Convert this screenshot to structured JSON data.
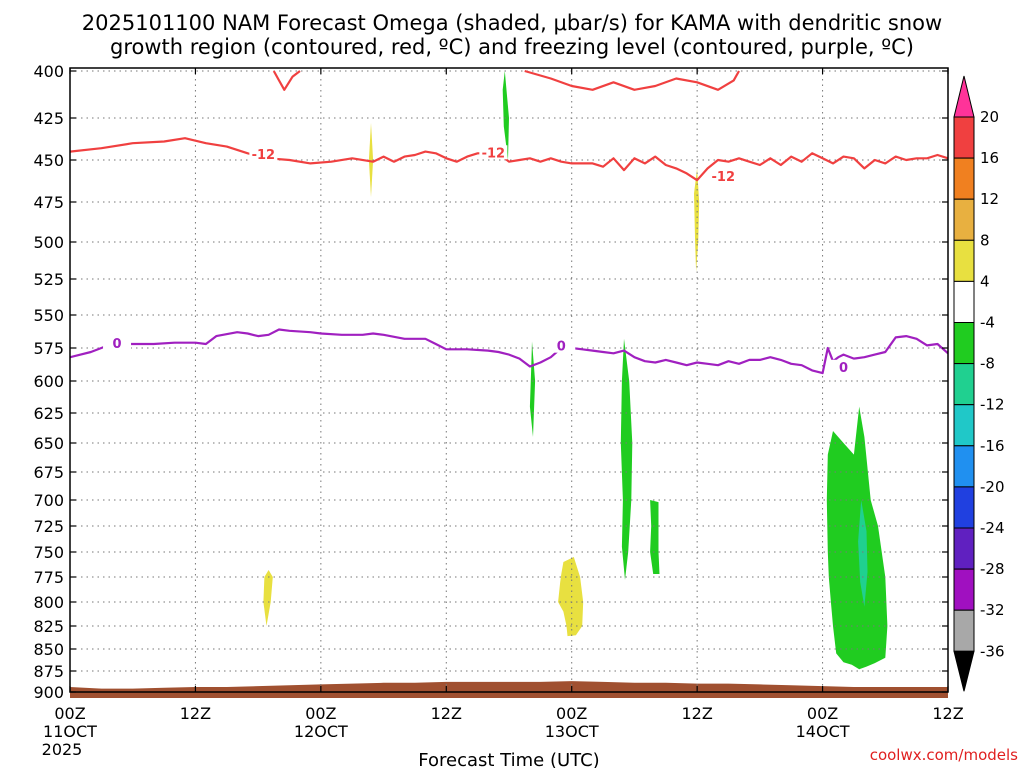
{
  "chart_data": {
    "type": "time-height contour",
    "title_line1": "2025101100 NAM Forecast Omega (shaded, μbar/s) for KAMA with dendritic snow",
    "title_line2": "growth region (contoured, red, ºC) and freezing level (contoured, purple, ºC)",
    "xlabel": "Forecast Time (UTC)",
    "credit": "coolwx.com/models",
    "x_unit": "hours since 2025101100",
    "xlim": [
      0,
      84
    ],
    "ylim": [
      900,
      400
    ],
    "y_ticks": [
      400,
      425,
      450,
      475,
      500,
      525,
      550,
      575,
      600,
      625,
      650,
      675,
      700,
      725,
      750,
      775,
      800,
      825,
      850,
      875,
      900
    ],
    "x_ticks": [
      {
        "x": 0,
        "label": "00Z",
        "sub1": "11OCT",
        "sub2": "2025"
      },
      {
        "x": 12,
        "label": "12Z",
        "sub1": "",
        "sub2": ""
      },
      {
        "x": 24,
        "label": "00Z",
        "sub1": "12OCT",
        "sub2": ""
      },
      {
        "x": 36,
        "label": "12Z",
        "sub1": "",
        "sub2": ""
      },
      {
        "x": 48,
        "label": "00Z",
        "sub1": "13OCT",
        "sub2": ""
      },
      {
        "x": 60,
        "label": "12Z",
        "sub1": "",
        "sub2": ""
      },
      {
        "x": 72,
        "label": "00Z",
        "sub1": "14OCT",
        "sub2": ""
      },
      {
        "x": 84,
        "label": "12Z",
        "sub1": "",
        "sub2": ""
      }
    ],
    "grid": true,
    "colorbar": {
      "labels": [
        "20",
        "16",
        "12",
        "8",
        "4",
        "-4",
        "-8",
        "-12",
        "-16",
        "-20",
        "-24",
        "-28",
        "-32",
        "-36"
      ],
      "colors": [
        "#ff3399",
        "#f04040",
        "#f08020",
        "#e8b040",
        "#e8e040",
        "#ffffff",
        "#20cc20",
        "#20d090",
        "#20c8c8",
        "#2090f0",
        "#2040e0",
        "#6020c0",
        "#a010c0",
        "#a8a8a8",
        "#000000"
      ]
    },
    "contours": [
      {
        "name": "-12",
        "color": "#f04040",
        "label_positions": [
          [
            18.5,
            447
          ],
          [
            40.5,
            446
          ],
          [
            62.5,
            460
          ]
        ],
        "points": [
          [
            0,
            445
          ],
          [
            3,
            443
          ],
          [
            6,
            440
          ],
          [
            9,
            439
          ],
          [
            11,
            437
          ],
          [
            13,
            440
          ],
          [
            15,
            442
          ],
          [
            17,
            446
          ],
          [
            19,
            449
          ],
          [
            21,
            450
          ],
          [
            23,
            452
          ],
          [
            25,
            451
          ],
          [
            27,
            449
          ],
          [
            29,
            451
          ],
          [
            30,
            448
          ],
          [
            31,
            451
          ],
          [
            32,
            448
          ],
          [
            33,
            447
          ],
          [
            34,
            445
          ],
          [
            35,
            446
          ],
          [
            36,
            449
          ],
          [
            37,
            451
          ],
          [
            38,
            448
          ],
          [
            39,
            446
          ],
          [
            41,
            446
          ],
          [
            42,
            451
          ],
          [
            43,
            450
          ],
          [
            44,
            449
          ],
          [
            45,
            451
          ],
          [
            46,
            449
          ],
          [
            47,
            451
          ],
          [
            48,
            452
          ],
          [
            50,
            452
          ],
          [
            51,
            454
          ],
          [
            52,
            449
          ],
          [
            53,
            456
          ],
          [
            54,
            449
          ],
          [
            55,
            452
          ],
          [
            56,
            448
          ],
          [
            57,
            453
          ],
          [
            58,
            455
          ],
          [
            59,
            458
          ],
          [
            60,
            462
          ],
          [
            61,
            455
          ],
          [
            62,
            450
          ],
          [
            63,
            451
          ],
          [
            64,
            449
          ],
          [
            65,
            451
          ],
          [
            66,
            453
          ],
          [
            67,
            449
          ],
          [
            68,
            453
          ],
          [
            69,
            448
          ],
          [
            70,
            451
          ],
          [
            71,
            446
          ],
          [
            72,
            449
          ],
          [
            73,
            452
          ],
          [
            74,
            448
          ],
          [
            75,
            449
          ],
          [
            76,
            455
          ],
          [
            77,
            450
          ],
          [
            78,
            452
          ],
          [
            79,
            448
          ],
          [
            80,
            450
          ],
          [
            81,
            449
          ],
          [
            82,
            449
          ],
          [
            83,
            447
          ],
          [
            84,
            449
          ]
        ]
      },
      {
        "name": "-12 top",
        "color": "#f04040",
        "label_positions": [],
        "points": [
          [
            19.5,
            400
          ],
          [
            20.0,
            405
          ],
          [
            20.5,
            410
          ],
          [
            21.3,
            403
          ],
          [
            22,
            400
          ]
        ]
      },
      {
        "name": "-12 top2",
        "color": "#f04040",
        "label_positions": [],
        "points": [
          [
            43.5,
            400
          ],
          [
            46,
            404
          ],
          [
            48,
            408
          ],
          [
            50,
            410
          ],
          [
            52,
            406
          ],
          [
            54,
            410
          ],
          [
            56,
            408
          ],
          [
            58,
            404
          ],
          [
            60,
            406
          ],
          [
            62,
            410
          ],
          [
            63.5,
            405
          ],
          [
            64,
            400
          ]
        ]
      },
      {
        "name": "0",
        "color": "#a020c0",
        "label_positions": [
          [
            4.5,
            572
          ],
          [
            47.0,
            574
          ],
          [
            74.0,
            590
          ]
        ],
        "points": [
          [
            0,
            582
          ],
          [
            2,
            578
          ],
          [
            4,
            572
          ],
          [
            6,
            572
          ],
          [
            8,
            572
          ],
          [
            10,
            571
          ],
          [
            12,
            571
          ],
          [
            13,
            572
          ],
          [
            14,
            566
          ],
          [
            16,
            563
          ],
          [
            17,
            564
          ],
          [
            18,
            566
          ],
          [
            19,
            565
          ],
          [
            20,
            561
          ],
          [
            21,
            562
          ],
          [
            23,
            563
          ],
          [
            24,
            564
          ],
          [
            26,
            565
          ],
          [
            28,
            565
          ],
          [
            29,
            564
          ],
          [
            30,
            565
          ],
          [
            32,
            568
          ],
          [
            34,
            568
          ],
          [
            35,
            572
          ],
          [
            36,
            576
          ],
          [
            38,
            576
          ],
          [
            40,
            577
          ],
          [
            41,
            578
          ],
          [
            42,
            580
          ],
          [
            43,
            583
          ],
          [
            44,
            589
          ],
          [
            45,
            586
          ],
          [
            46,
            582
          ],
          [
            47,
            575
          ],
          [
            48,
            575
          ],
          [
            49,
            576
          ],
          [
            50,
            577
          ],
          [
            51,
            578
          ],
          [
            52,
            579
          ],
          [
            53,
            577
          ],
          [
            54,
            582
          ],
          [
            55,
            585
          ],
          [
            56,
            586
          ],
          [
            57,
            584
          ],
          [
            58,
            586
          ],
          [
            59,
            588
          ],
          [
            60,
            586
          ],
          [
            61,
            587
          ],
          [
            62,
            588
          ],
          [
            63,
            585
          ],
          [
            64,
            587
          ],
          [
            65,
            584
          ],
          [
            66,
            584
          ],
          [
            67,
            582
          ],
          [
            68,
            584
          ],
          [
            69,
            587
          ],
          [
            70,
            588
          ],
          [
            71,
            592
          ],
          [
            72,
            594
          ],
          [
            72.5,
            575
          ],
          [
            73,
            585
          ],
          [
            73.5,
            582
          ],
          [
            74,
            580
          ],
          [
            75,
            583
          ],
          [
            76,
            582
          ],
          [
            77,
            580
          ],
          [
            78,
            578
          ],
          [
            79,
            567
          ],
          [
            80,
            566
          ],
          [
            81,
            568
          ],
          [
            82,
            573
          ],
          [
            83,
            572
          ],
          [
            84,
            579
          ]
        ]
      }
    ],
    "shaded_regions": [
      {
        "value": 4,
        "color": "#e8e040",
        "points": [
          [
            19.0,
            768
          ],
          [
            19.4,
            775
          ],
          [
            19.2,
            800
          ],
          [
            18.8,
            825
          ],
          [
            18.5,
            800
          ],
          [
            18.6,
            775
          ]
        ]
      },
      {
        "value": 4,
        "color": "#e8e040",
        "points": [
          [
            28.8,
            428
          ],
          [
            29.0,
            450
          ],
          [
            28.8,
            472
          ],
          [
            28.6,
            450
          ]
        ]
      },
      {
        "value": 4,
        "color": "#e8e040",
        "points": [
          [
            47.2,
            760
          ],
          [
            48.2,
            755
          ],
          [
            48.8,
            775
          ],
          [
            49.1,
            800
          ],
          [
            49.0,
            825
          ],
          [
            48.4,
            835
          ],
          [
            47.6,
            836
          ],
          [
            47.5,
            825
          ],
          [
            47.2,
            810
          ],
          [
            46.7,
            800
          ],
          [
            46.9,
            780
          ],
          [
            47.0,
            772
          ]
        ]
      },
      {
        "value": 4,
        "color": "#e8e040",
        "points": [
          [
            60.0,
            455
          ],
          [
            60.2,
            475
          ],
          [
            60.1,
            500
          ],
          [
            59.9,
            520
          ],
          [
            59.8,
            500
          ],
          [
            59.7,
            470
          ]
        ]
      },
      {
        "value": -4,
        "color": "#20cc20",
        "points": [
          [
            41.6,
            400
          ],
          [
            42.0,
            425
          ],
          [
            41.9,
            450
          ],
          [
            41.5,
            430
          ],
          [
            41.4,
            410
          ]
        ]
      },
      {
        "value": -4,
        "color": "#20cc20",
        "points": [
          [
            44.2,
            570
          ],
          [
            44.5,
            600
          ],
          [
            44.3,
            645
          ],
          [
            44.0,
            620
          ],
          [
            44.1,
            595
          ]
        ]
      },
      {
        "value": -4,
        "color": "#20cc20",
        "points": [
          [
            53.0,
            568
          ],
          [
            53.5,
            600
          ],
          [
            53.8,
            650
          ],
          [
            53.7,
            700
          ],
          [
            53.4,
            750
          ],
          [
            53.1,
            778
          ],
          [
            52.8,
            745
          ],
          [
            52.9,
            700
          ],
          [
            52.7,
            650
          ],
          [
            52.8,
            600
          ]
        ]
      },
      {
        "value": -4,
        "color": "#20cc20",
        "points": [
          [
            55.5,
            700
          ],
          [
            56.3,
            702
          ],
          [
            56.3,
            750
          ],
          [
            56.4,
            772
          ],
          [
            55.8,
            772
          ],
          [
            55.5,
            750
          ],
          [
            55.6,
            725
          ]
        ]
      },
      {
        "value": -4,
        "color": "#20cc20",
        "points": [
          [
            73.0,
            640
          ],
          [
            74.0,
            650
          ],
          [
            75.0,
            660
          ],
          [
            75.5,
            620
          ],
          [
            76.0,
            645
          ],
          [
            76.6,
            700
          ],
          [
            77.3,
            725
          ],
          [
            78.0,
            775
          ],
          [
            78.2,
            825
          ],
          [
            78.0,
            860
          ],
          [
            77.0,
            866
          ],
          [
            76.2,
            870
          ],
          [
            75.5,
            873
          ],
          [
            74.8,
            868
          ],
          [
            74.0,
            865
          ],
          [
            73.3,
            855
          ],
          [
            73.0,
            825
          ],
          [
            72.8,
            800
          ],
          [
            72.6,
            775
          ],
          [
            72.5,
            750
          ],
          [
            72.4,
            700
          ],
          [
            72.5,
            660
          ]
        ]
      },
      {
        "value": -8,
        "color": "#20d090",
        "points": [
          [
            75.7,
            700
          ],
          [
            76.2,
            730
          ],
          [
            76.3,
            770
          ],
          [
            76.0,
            805
          ],
          [
            75.6,
            780
          ],
          [
            75.4,
            740
          ]
        ]
      }
    ],
    "terrain": {
      "color": "#a05030",
      "surface_pressure": [
        [
          0,
          894
        ],
        [
          3,
          896
        ],
        [
          6,
          896
        ],
        [
          9,
          895
        ],
        [
          12,
          894
        ],
        [
          15,
          894
        ],
        [
          18,
          893
        ],
        [
          21,
          892
        ],
        [
          24,
          891
        ],
        [
          27,
          890
        ],
        [
          30,
          889
        ],
        [
          33,
          889
        ],
        [
          36,
          888
        ],
        [
          39,
          888
        ],
        [
          42,
          888
        ],
        [
          45,
          888
        ],
        [
          48,
          887
        ],
        [
          51,
          888
        ],
        [
          54,
          889
        ],
        [
          57,
          889
        ],
        [
          60,
          890
        ],
        [
          63,
          890
        ],
        [
          66,
          891
        ],
        [
          69,
          892
        ],
        [
          72,
          893
        ],
        [
          75,
          894
        ],
        [
          78,
          894
        ],
        [
          81,
          894
        ],
        [
          84,
          894
        ]
      ]
    }
  }
}
